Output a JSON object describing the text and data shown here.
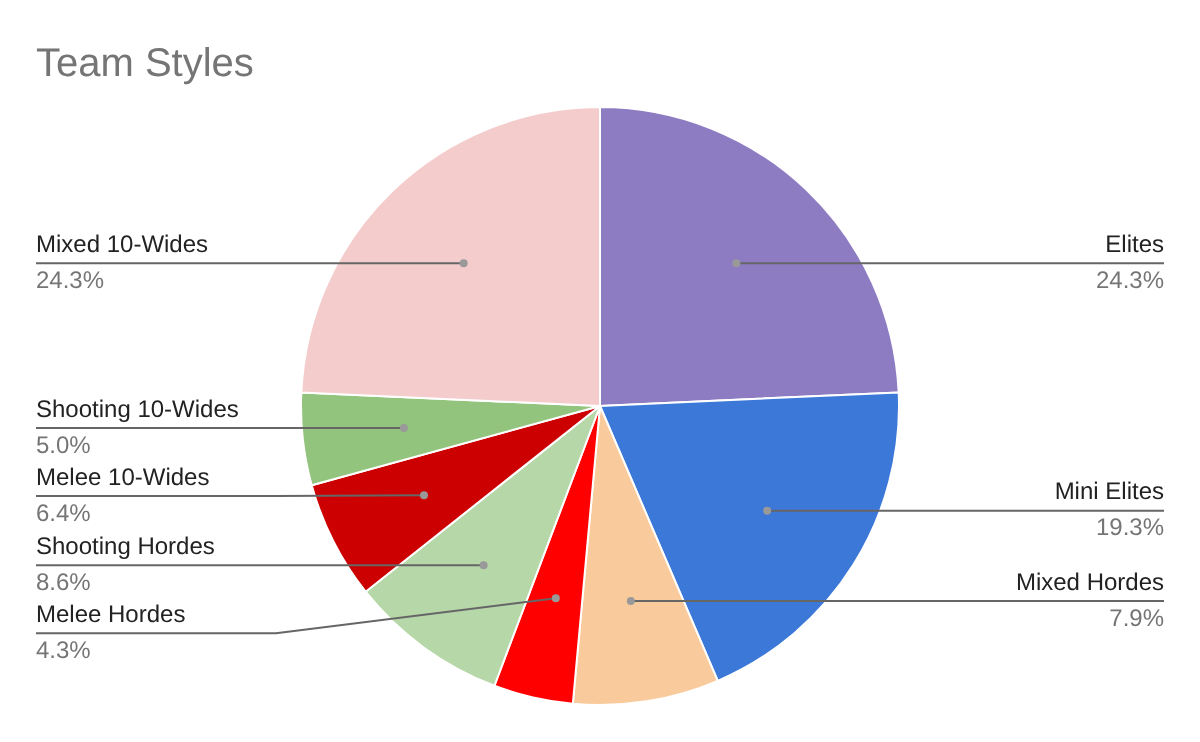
{
  "chart_data": {
    "type": "pie",
    "title": "Team Styles",
    "categories": [
      "Elites",
      "Mini Elites",
      "Mixed Hordes",
      "Melee Hordes",
      "Shooting Hordes",
      "Melee 10-Wides",
      "Shooting 10-Wides",
      "Mixed 10-Wides"
    ],
    "values": [
      24.3,
      19.3,
      7.9,
      4.3,
      8.6,
      6.4,
      5.0,
      24.3
    ],
    "colors": [
      "#8e7cc3",
      "#3c78d8",
      "#f9cb9c",
      "#ff0000",
      "#b6d7a8",
      "#cc0000",
      "#93c47d",
      "#f4cccc"
    ],
    "value_labels": [
      "24.3%",
      "19.3%",
      "7.9%",
      "4.3%",
      "8.6%",
      "6.4%",
      "5.0%",
      "24.3%"
    ],
    "legend": false
  }
}
